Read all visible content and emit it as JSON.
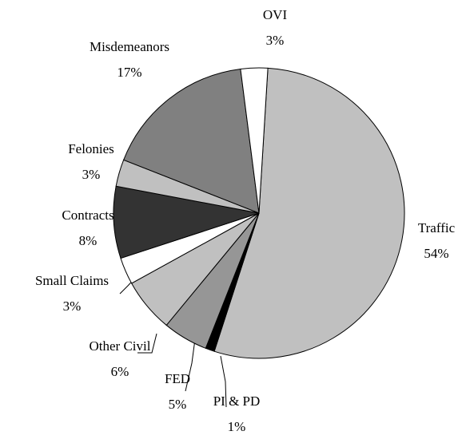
{
  "chart_data": {
    "type": "pie",
    "categories": [
      "Traffic",
      "PI & PD",
      "FED",
      "Other Civil",
      "Small Claims",
      "Contracts",
      "Felonies",
      "Misdemeanors",
      "OVI"
    ],
    "values": [
      54,
      1,
      5,
      6,
      3,
      8,
      3,
      17,
      3
    ],
    "value_labels": [
      "54%",
      "1%",
      "5%",
      "6%",
      "3%",
      "8%",
      "3%",
      "17%",
      "3%"
    ],
    "colors": [
      "#c0c0c0",
      "#000000",
      "#969696",
      "#c0c0c0",
      "#ffffff",
      "#333333",
      "#c0c0c0",
      "#808080",
      "#ffffff"
    ]
  }
}
